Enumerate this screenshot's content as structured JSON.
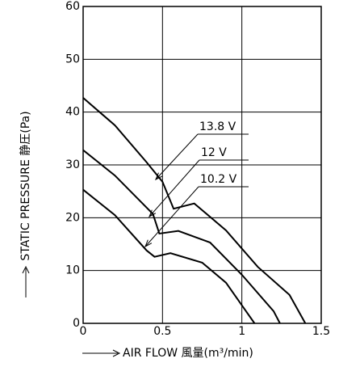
{
  "chart_data": {
    "type": "line",
    "x_label": "AIR FLOW 風量(m³/min)",
    "y_label": "STATIC PRESSURE 静圧(Pa)",
    "xlim": [
      0,
      1.5
    ],
    "xticks": [
      0,
      0.5,
      1,
      1.5
    ],
    "ylim": [
      0,
      60
    ],
    "yticks": [
      0,
      10,
      20,
      30,
      40,
      50,
      60
    ],
    "grid": true,
    "series": [
      {
        "name": "13.8 V",
        "color": "#000000",
        "x": [
          0,
          0.2,
          0.4,
          0.5,
          0.57,
          0.7,
          0.9,
          1.1,
          1.3,
          1.4
        ],
        "values": [
          42.7,
          37.5,
          30.5,
          26.8,
          21.7,
          22.7,
          17.6,
          10.7,
          5.4,
          0
        ]
      },
      {
        "name": "12 V",
        "color": "#000000",
        "x": [
          0,
          0.2,
          0.44,
          0.48,
          0.6,
          0.8,
          1.0,
          1.2,
          1.24
        ],
        "values": [
          32.8,
          28,
          20.7,
          17,
          17.5,
          15.3,
          9.2,
          2.3,
          0
        ]
      },
      {
        "name": "10.2 V",
        "color": "#000000",
        "x": [
          0,
          0.2,
          0.4,
          0.45,
          0.55,
          0.75,
          0.9,
          1.08
        ],
        "values": [
          25.3,
          20.5,
          13.8,
          12.6,
          13.3,
          11.5,
          7.7,
          0
        ]
      }
    ]
  }
}
